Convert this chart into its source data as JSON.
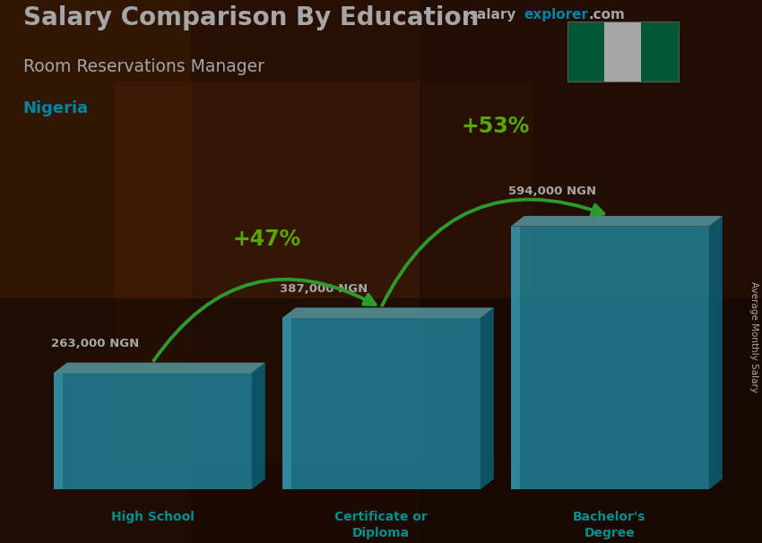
{
  "title": "Salary Comparison By Education",
  "subtitle": "Room Reservations Manager",
  "country": "Nigeria",
  "categories": [
    "High School",
    "Certificate or\nDiploma",
    "Bachelor's\nDegree"
  ],
  "values": [
    263000,
    387000,
    594000
  ],
  "value_labels": [
    "263,000 NGN",
    "387,000 NGN",
    "594,000 NGN"
  ],
  "bar_color_front": "#33ccee",
  "bar_color_left": "#55ddff",
  "bar_color_side": "#1199bb",
  "bar_color_top": "#88eeff",
  "bar_alpha": 0.82,
  "pct_labels": [
    "+47%",
    "+53%"
  ],
  "pct_color": "#88ff00",
  "arrow_color": "#44ee44",
  "title_color": "#ffffff",
  "subtitle_color": "#ffffff",
  "country_color": "#00ccff",
  "value_label_color": "#ffffff",
  "xlabel_color": "#00dddd",
  "bg_color": "#3a1a08",
  "figsize": [
    8.5,
    6.06
  ],
  "dpi": 100,
  "flag_green": "#008751",
  "flag_white": "#ffffff",
  "site_text_white": "salary",
  "site_text_cyan": "explorer",
  "site_text_com": ".com"
}
